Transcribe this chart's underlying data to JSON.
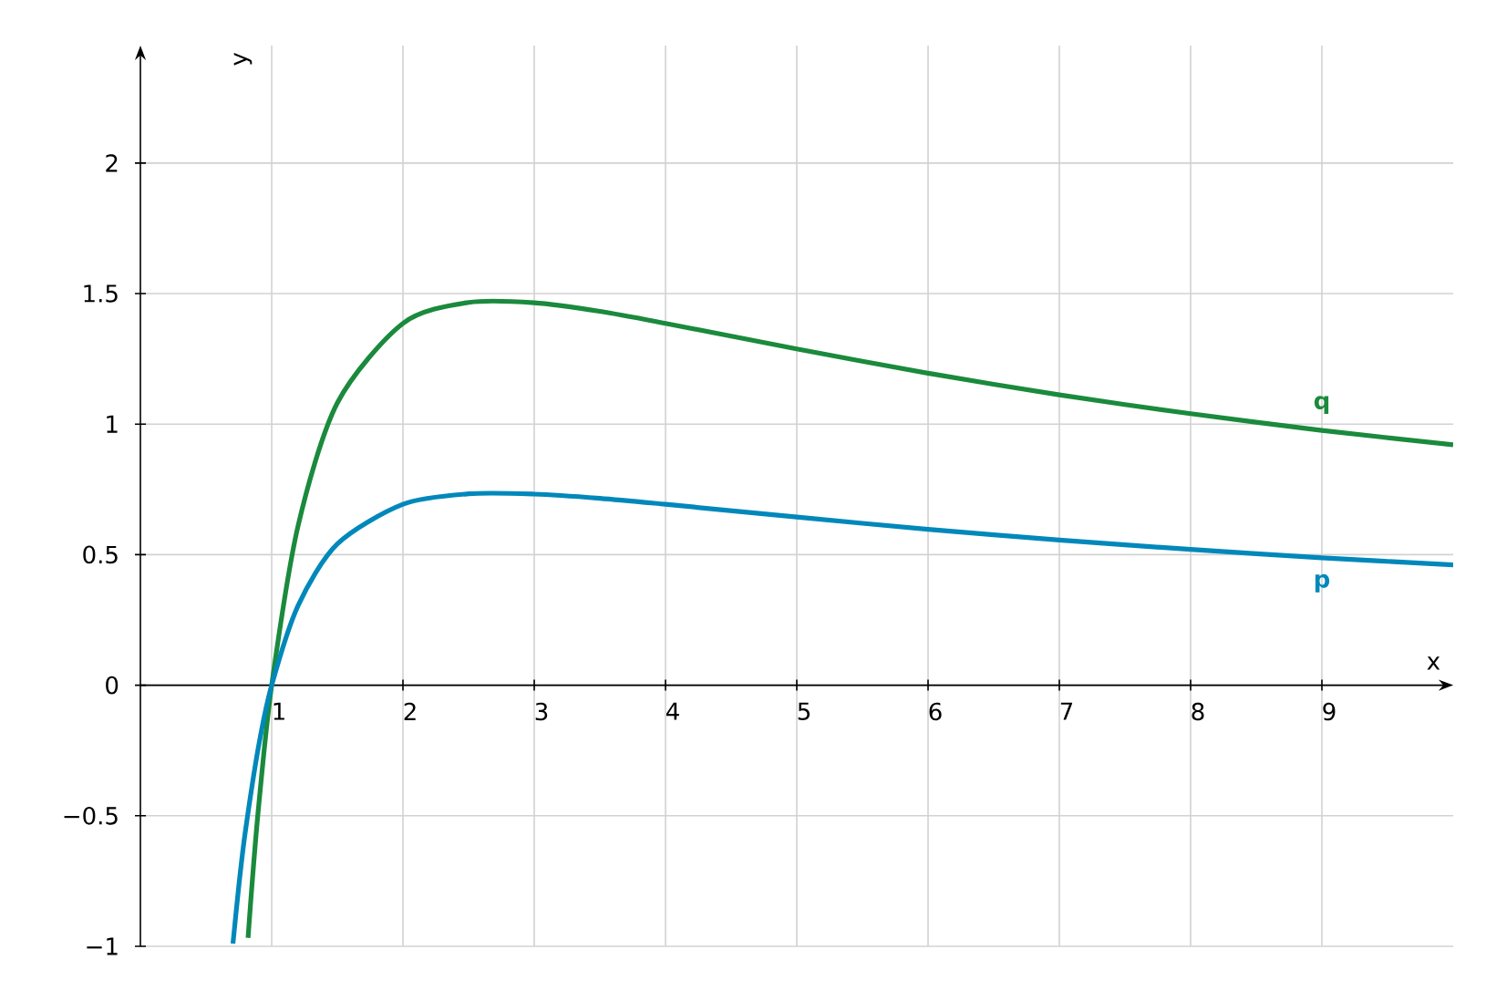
{
  "chart_data": {
    "type": "line",
    "xlabel": "x",
    "ylabel": "y",
    "xlim": [
      0,
      10
    ],
    "ylim": [
      -1,
      2.45
    ],
    "xticks": [
      1,
      2,
      3,
      4,
      5,
      6,
      7,
      8,
      9
    ],
    "yticks": [
      {
        "value": -1,
        "label": "−1"
      },
      {
        "value": -0.5,
        "label": "−0.5"
      },
      {
        "value": 0,
        "label": "0"
      },
      0.5,
      1,
      1.5,
      2
    ],
    "grid": true,
    "series": [
      {
        "name": "q",
        "color": "#1a8a3c",
        "x": [
          0.82,
          0.85,
          0.9,
          1,
          1.2,
          1.5,
          2,
          2.5,
          3,
          3.5,
          4,
          5,
          6,
          7,
          8,
          9,
          10
        ],
        "values": [
          -0.968,
          -0.765,
          -0.468,
          0,
          0.608,
          1.081,
          1.386,
          1.466,
          1.465,
          1.432,
          1.386,
          1.288,
          1.195,
          1.112,
          1.04,
          0.976,
          0.921
        ]
      },
      {
        "name": "p",
        "color": "#0088bb",
        "x": [
          0.705,
          0.75,
          0.8,
          0.9,
          1,
          1.2,
          1.5,
          2,
          2.5,
          3,
          3.5,
          4,
          5,
          6,
          7,
          8,
          9,
          10
        ],
        "values": [
          -0.99,
          -0.767,
          -0.558,
          -0.234,
          0,
          0.304,
          0.541,
          0.693,
          0.733,
          0.732,
          0.716,
          0.693,
          0.644,
          0.597,
          0.556,
          0.52,
          0.488,
          0.461
        ]
      }
    ]
  }
}
